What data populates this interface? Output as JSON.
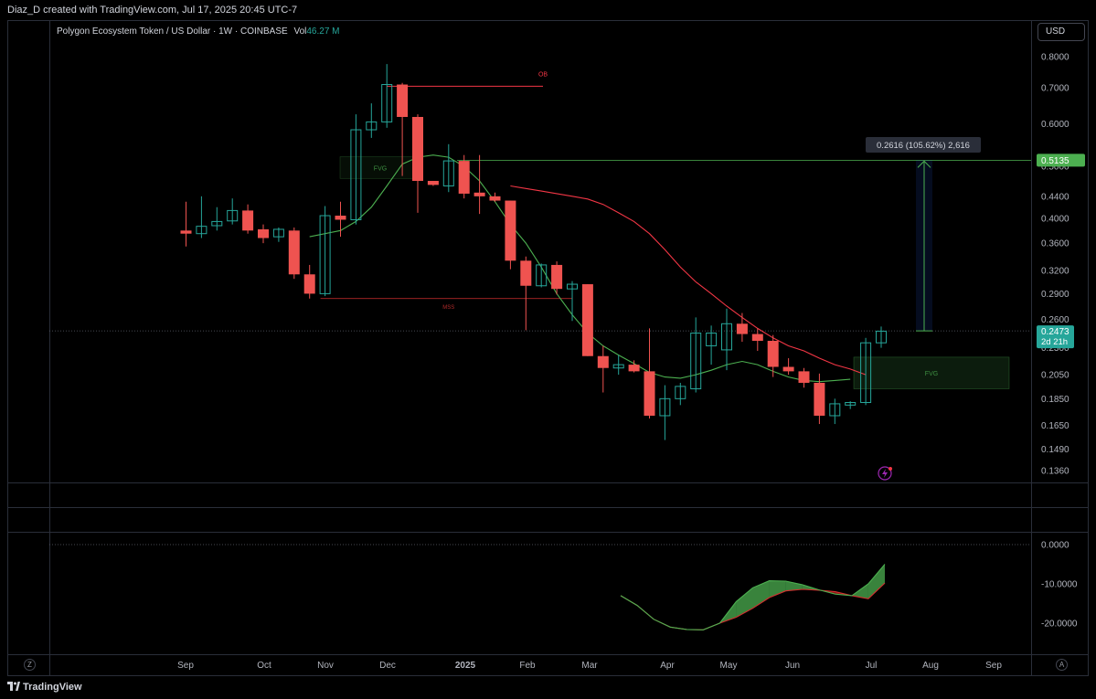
{
  "header": {
    "attribution": "Diaz_D created with TradingView.com, Jul 17, 2025 20:45 UTC-7"
  },
  "legend": {
    "symbol": "Polygon Ecosystem Token / US Dollar · 1W · COINBASE",
    "vol_label": "Vol",
    "vol_value": "46.27 M"
  },
  "currency_button": "USD",
  "footer": {
    "logo_text": "TradingView",
    "zoom_button": "Z",
    "auto_button": "A"
  },
  "chart_data": [
    {
      "type": "candlestick",
      "title": "Polygon Ecosystem Token / US Dollar · 1W · COINBASE",
      "scale": "log",
      "ylim": [
        0.13,
        0.8
      ],
      "y_ticks": [
        "0.8000",
        "0.7000",
        "0.6000",
        "0.5000",
        "0.4400",
        "0.4000",
        "0.3600",
        "0.3200",
        "0.2900",
        "0.2600",
        "0.2300",
        "0.2050",
        "0.1850",
        "0.1650",
        "0.1490",
        "0.1360"
      ],
      "x_ticks": [
        "Sep",
        "Oct",
        "Nov",
        "Dec",
        "2025",
        "Feb",
        "Mar",
        "Apr",
        "May",
        "Jun",
        "Jul",
        "Aug",
        "Sep"
      ],
      "candles": [
        {
          "o": 0.38,
          "h": 0.43,
          "l": 0.355,
          "c": 0.375
        },
        {
          "o": 0.375,
          "h": 0.44,
          "l": 0.368,
          "c": 0.387
        },
        {
          "o": 0.388,
          "h": 0.42,
          "l": 0.38,
          "c": 0.395
        },
        {
          "o": 0.396,
          "h": 0.436,
          "l": 0.39,
          "c": 0.414
        },
        {
          "o": 0.414,
          "h": 0.425,
          "l": 0.375,
          "c": 0.38
        },
        {
          "o": 0.382,
          "h": 0.39,
          "l": 0.36,
          "c": 0.368
        },
        {
          "o": 0.37,
          "h": 0.385,
          "l": 0.362,
          "c": 0.382
        },
        {
          "o": 0.38,
          "h": 0.385,
          "l": 0.309,
          "c": 0.315
        },
        {
          "o": 0.315,
          "h": 0.328,
          "l": 0.284,
          "c": 0.29
        },
        {
          "o": 0.29,
          "h": 0.422,
          "l": 0.287,
          "c": 0.405
        },
        {
          "o": 0.405,
          "h": 0.43,
          "l": 0.37,
          "c": 0.398
        },
        {
          "o": 0.398,
          "h": 0.625,
          "l": 0.39,
          "c": 0.585
        },
        {
          "o": 0.585,
          "h": 0.655,
          "l": 0.565,
          "c": 0.605
        },
        {
          "o": 0.605,
          "h": 0.775,
          "l": 0.59,
          "c": 0.71
        },
        {
          "o": 0.71,
          "h": 0.715,
          "l": 0.48,
          "c": 0.618
        },
        {
          "o": 0.618,
          "h": 0.625,
          "l": 0.41,
          "c": 0.47
        },
        {
          "o": 0.47,
          "h": 0.47,
          "l": 0.46,
          "c": 0.462
        },
        {
          "o": 0.46,
          "h": 0.55,
          "l": 0.448,
          "c": 0.512
        },
        {
          "o": 0.512,
          "h": 0.525,
          "l": 0.436,
          "c": 0.445
        },
        {
          "o": 0.447,
          "h": 0.525,
          "l": 0.408,
          "c": 0.44
        },
        {
          "o": 0.44,
          "h": 0.447,
          "l": 0.43,
          "c": 0.432
        },
        {
          "o": 0.432,
          "h": 0.432,
          "l": 0.322,
          "c": 0.334
        },
        {
          "o": 0.334,
          "h": 0.34,
          "l": 0.248,
          "c": 0.3
        },
        {
          "o": 0.3,
          "h": 0.33,
          "l": 0.298,
          "c": 0.328
        },
        {
          "o": 0.328,
          "h": 0.333,
          "l": 0.289,
          "c": 0.296
        },
        {
          "o": 0.296,
          "h": 0.306,
          "l": 0.258,
          "c": 0.302
        },
        {
          "o": 0.302,
          "h": 0.302,
          "l": 0.222,
          "c": 0.222
        },
        {
          "o": 0.222,
          "h": 0.232,
          "l": 0.19,
          "c": 0.211
        },
        {
          "o": 0.211,
          "h": 0.223,
          "l": 0.205,
          "c": 0.214
        },
        {
          "o": 0.214,
          "h": 0.218,
          "l": 0.207,
          "c": 0.208
        },
        {
          "o": 0.208,
          "h": 0.25,
          "l": 0.17,
          "c": 0.172
        },
        {
          "o": 0.172,
          "h": 0.196,
          "l": 0.155,
          "c": 0.185
        },
        {
          "o": 0.185,
          "h": 0.198,
          "l": 0.18,
          "c": 0.195
        },
        {
          "o": 0.193,
          "h": 0.262,
          "l": 0.19,
          "c": 0.245
        },
        {
          "o": 0.232,
          "h": 0.253,
          "l": 0.214,
          "c": 0.245
        },
        {
          "o": 0.228,
          "h": 0.272,
          "l": 0.209,
          "c": 0.255
        },
        {
          "o": 0.255,
          "h": 0.267,
          "l": 0.236,
          "c": 0.244
        },
        {
          "o": 0.244,
          "h": 0.25,
          "l": 0.227,
          "c": 0.237
        },
        {
          "o": 0.237,
          "h": 0.243,
          "l": 0.203,
          "c": 0.212
        },
        {
          "o": 0.212,
          "h": 0.22,
          "l": 0.205,
          "c": 0.208
        },
        {
          "o": 0.208,
          "h": 0.211,
          "l": 0.194,
          "c": 0.198
        },
        {
          "o": 0.198,
          "h": 0.206,
          "l": 0.166,
          "c": 0.172
        },
        {
          "o": 0.172,
          "h": 0.185,
          "l": 0.166,
          "c": 0.181
        },
        {
          "o": 0.18,
          "h": 0.183,
          "l": 0.177,
          "c": 0.182
        },
        {
          "o": 0.182,
          "h": 0.24,
          "l": 0.18,
          "c": 0.235
        },
        {
          "o": 0.235,
          "h": 0.252,
          "l": 0.23,
          "c": 0.247
        }
      ],
      "series": [
        {
          "kind": "ma",
          "color": "#4caf50",
          "values": [
            0.37,
            0.375,
            0.38,
            0.395,
            0.42,
            0.46,
            0.505,
            0.52,
            0.525,
            0.52,
            0.5,
            0.47,
            0.43,
            0.39,
            0.36,
            0.325,
            0.29,
            0.265,
            0.245,
            0.232,
            0.223,
            0.215,
            0.207,
            0.203,
            0.202,
            0.205,
            0.209,
            0.214,
            0.217,
            0.214,
            0.208,
            0.203,
            0.2,
            0.199,
            0.2,
            0.201
          ]
        },
        {
          "kind": "ma",
          "color": "#f23645",
          "values": [
            0.46,
            0.455,
            0.45,
            0.445,
            0.44,
            0.435,
            0.425,
            0.41,
            0.395,
            0.375,
            0.35,
            0.325,
            0.305,
            0.29,
            0.275,
            0.262,
            0.25,
            0.24,
            0.232,
            0.227,
            0.22,
            0.214,
            0.21,
            0.205
          ]
        }
      ],
      "annotations": {
        "ob_label": "OB",
        "ob_price": 0.705,
        "mss_label": "MSS",
        "mss_price": 0.284,
        "fvg_label_1": "FVG",
        "fvg1_range": [
          0.475,
          0.521
        ],
        "fvg_label_2": "FVG",
        "fvg2_range": [
          0.193,
          0.221
        ],
        "target_price": 0.5135,
        "measure_from": 0.2473,
        "measure_text": "0.2616 (105.62%) 2,616",
        "target_label": "0.5135",
        "last_price_label": "0.2473",
        "countdown_label": "2d 21h"
      }
    },
    {
      "type": "area",
      "title": "oscillator",
      "ylim": [
        -24,
        2
      ],
      "y_ticks": [
        "0.0000",
        "-10.0000",
        "-20.0000"
      ],
      "line1": [
        -13.0,
        -15.5,
        -19.0,
        -21.0,
        -21.6,
        -21.7,
        -20.0,
        -18.5,
        -16.2,
        -13.5,
        -11.8,
        -11.4,
        -11.6,
        -12.0,
        -13.0,
        -13.8,
        -9.8
      ],
      "line2": [
        -13.0,
        -15.5,
        -19.0,
        -21.0,
        -21.6,
        -21.7,
        -20.0,
        -14.5,
        -11.0,
        -9.2,
        -9.3,
        -10.2,
        -11.5,
        -12.6,
        -13.0,
        -10.0,
        -5.0
      ]
    }
  ]
}
